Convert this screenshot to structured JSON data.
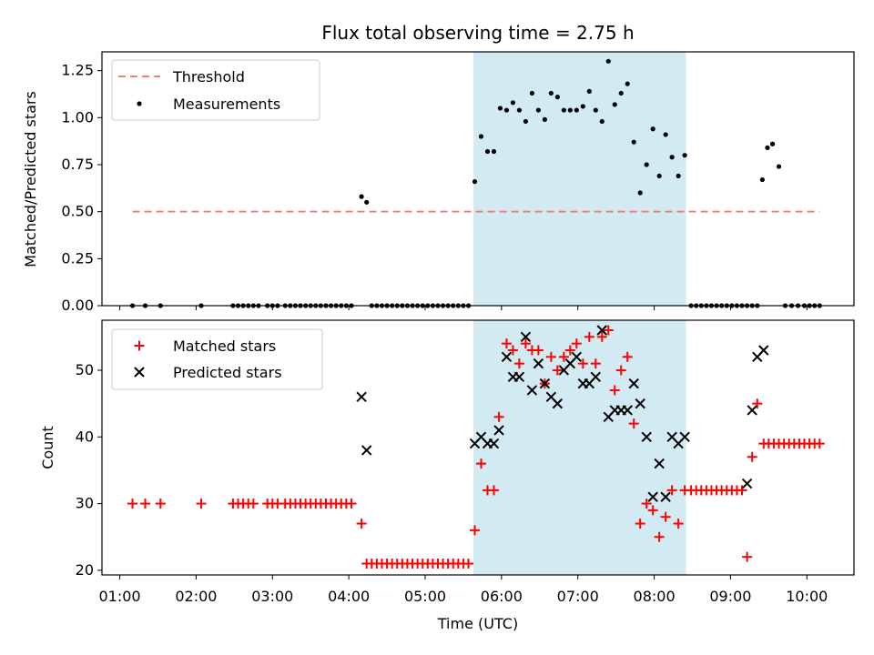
{
  "chart_data": [
    {
      "type": "scatter",
      "title": "Flux total observing time = 2.75 h",
      "xlabel": "",
      "ylabel": "Matched/Predicted stars",
      "ylim": [
        0,
        1.35
      ],
      "yticks": [
        "0.00",
        "0.25",
        "0.50",
        "0.75",
        "1.00",
        "1.25"
      ],
      "xlim": [
        "00:46",
        "10:37"
      ],
      "grid": false,
      "legend_position": "top-left",
      "highlight_span": {
        "start": "05:38",
        "end": "08:25",
        "color": "#add8e6"
      },
      "threshold": {
        "name": "Threshold",
        "value": 0.5,
        "x_start": "01:10",
        "x_end": "10:10",
        "color": "#f08080",
        "style": "dashed"
      },
      "series": [
        {
          "name": "Measurements",
          "color": "#000000",
          "marker": "dot",
          "x": [
            "01:10",
            "01:20",
            "01:32",
            "02:04",
            "02:29",
            "02:33",
            "02:37",
            "02:41",
            "02:45",
            "02:49",
            "02:56",
            "03:00",
            "03:04",
            "03:10",
            "03:14",
            "03:18",
            "03:22",
            "03:26",
            "03:30",
            "03:34",
            "03:38",
            "03:42",
            "03:46",
            "03:50",
            "03:54",
            "03:58",
            "04:02",
            "04:10",
            "04:14",
            "04:18",
            "04:22",
            "04:26",
            "04:30",
            "04:34",
            "04:38",
            "04:42",
            "04:46",
            "04:50",
            "04:54",
            "04:58",
            "05:02",
            "05:06",
            "05:10",
            "05:14",
            "05:18",
            "05:22",
            "05:26",
            "05:30",
            "05:34",
            "05:39",
            "05:44",
            "05:49",
            "05:54",
            "05:59",
            "06:04",
            "06:09",
            "06:14",
            "06:19",
            "06:24",
            "06:29",
            "06:34",
            "06:39",
            "06:44",
            "06:49",
            "06:54",
            "06:59",
            "07:04",
            "07:09",
            "07:14",
            "07:19",
            "07:24",
            "07:29",
            "07:34",
            "07:39",
            "07:44",
            "07:49",
            "07:54",
            "07:59",
            "08:04",
            "08:09",
            "08:14",
            "08:19",
            "08:24",
            "08:29",
            "08:33",
            "08:37",
            "08:41",
            "08:45",
            "08:49",
            "08:53",
            "08:57",
            "09:01",
            "09:05",
            "09:09",
            "09:13",
            "09:17",
            "09:21",
            "09:25",
            "09:29",
            "09:33",
            "09:38",
            "09:43",
            "09:48",
            "09:53",
            "09:58",
            "10:02",
            "10:06",
            "10:10"
          ],
          "y": [
            0,
            0,
            0,
            0,
            0,
            0,
            0,
            0,
            0,
            0,
            0,
            0,
            0,
            0,
            0,
            0,
            0,
            0,
            0,
            0,
            0,
            0,
            0,
            0,
            0,
            0,
            0,
            0.58,
            0.55,
            0,
            0,
            0,
            0,
            0,
            0,
            0,
            0,
            0,
            0,
            0,
            0,
            0,
            0,
            0,
            0,
            0,
            0,
            0,
            0,
            0.66,
            0.9,
            0.82,
            0.82,
            1.05,
            1.04,
            1.08,
            1.04,
            0.98,
            1.13,
            1.04,
            0.99,
            1.13,
            1.11,
            1.04,
            1.04,
            1.04,
            1.06,
            1.14,
            1.04,
            0.98,
            1.3,
            1.07,
            1.13,
            1.18,
            0.87,
            0.6,
            0.75,
            0.94,
            0.69,
            0.91,
            0.79,
            0.69,
            0.8,
            0,
            0,
            0,
            0,
            0,
            0,
            0,
            0,
            0,
            0,
            0,
            0,
            0,
            0,
            0.67,
            0.84,
            0.86,
            0.74,
            0,
            0,
            0,
            0,
            0,
            0,
            0
          ]
        }
      ]
    },
    {
      "type": "scatter",
      "title": "",
      "xlabel": "Time (UTC)",
      "ylabel": "Count",
      "ylim": [
        19.3,
        57.5
      ],
      "yticks": [
        "20",
        "30",
        "40",
        "50"
      ],
      "xticks": [
        "01:00",
        "02:00",
        "03:00",
        "04:00",
        "05:00",
        "06:00",
        "07:00",
        "08:00",
        "09:00",
        "10:00"
      ],
      "xlim": [
        "00:46",
        "10:37"
      ],
      "grid": false,
      "legend_position": "top-left",
      "highlight_span": {
        "start": "05:38",
        "end": "08:25",
        "color": "#add8e6"
      },
      "series": [
        {
          "name": "Matched stars",
          "color": "#ff0000",
          "marker": "plus",
          "points": [
            [
              "01:10",
              30
            ],
            [
              "01:20",
              30
            ],
            [
              "01:32",
              30
            ],
            [
              "02:04",
              30
            ],
            [
              "02:29",
              30
            ],
            [
              "02:33",
              30
            ],
            [
              "02:37",
              30
            ],
            [
              "02:41",
              30
            ],
            [
              "02:45",
              30
            ],
            [
              "02:56",
              30
            ],
            [
              "03:00",
              30
            ],
            [
              "03:04",
              30
            ],
            [
              "03:10",
              30
            ],
            [
              "03:14",
              30
            ],
            [
              "03:18",
              30
            ],
            [
              "03:22",
              30
            ],
            [
              "03:26",
              30
            ],
            [
              "03:30",
              30
            ],
            [
              "03:34",
              30
            ],
            [
              "03:38",
              30
            ],
            [
              "03:42",
              30
            ],
            [
              "03:46",
              30
            ],
            [
              "03:50",
              30
            ],
            [
              "03:54",
              30
            ],
            [
              "03:58",
              30
            ],
            [
              "04:02",
              30
            ],
            [
              "04:10",
              27
            ],
            [
              "04:14",
              21
            ],
            [
              "04:18",
              21
            ],
            [
              "04:22",
              21
            ],
            [
              "04:26",
              21
            ],
            [
              "04:30",
              21
            ],
            [
              "04:34",
              21
            ],
            [
              "04:38",
              21
            ],
            [
              "04:42",
              21
            ],
            [
              "04:46",
              21
            ],
            [
              "04:50",
              21
            ],
            [
              "04:54",
              21
            ],
            [
              "04:58",
              21
            ],
            [
              "05:02",
              21
            ],
            [
              "05:06",
              21
            ],
            [
              "05:10",
              21
            ],
            [
              "05:14",
              21
            ],
            [
              "05:18",
              21
            ],
            [
              "05:22",
              21
            ],
            [
              "05:26",
              21
            ],
            [
              "05:30",
              21
            ],
            [
              "05:34",
              21
            ],
            [
              "05:39",
              26
            ],
            [
              "05:44",
              36
            ],
            [
              "05:49",
              32
            ],
            [
              "05:54",
              32
            ],
            [
              "05:58",
              43
            ],
            [
              "06:04",
              54
            ],
            [
              "06:09",
              53
            ],
            [
              "06:14",
              51
            ],
            [
              "06:19",
              54
            ],
            [
              "06:24",
              53
            ],
            [
              "06:29",
              53
            ],
            [
              "06:34",
              48
            ],
            [
              "06:39",
              52
            ],
            [
              "06:44",
              50
            ],
            [
              "06:49",
              52
            ],
            [
              "06:54",
              53
            ],
            [
              "06:59",
              54
            ],
            [
              "07:04",
              51
            ],
            [
              "07:09",
              55
            ],
            [
              "07:14",
              51
            ],
            [
              "07:19",
              55
            ],
            [
              "07:24",
              56
            ],
            [
              "07:29",
              47
            ],
            [
              "07:34",
              50
            ],
            [
              "07:39",
              52
            ],
            [
              "07:44",
              42
            ],
            [
              "07:49",
              27
            ],
            [
              "07:54",
              30
            ],
            [
              "07:59",
              29
            ],
            [
              "08:04",
              25
            ],
            [
              "08:09",
              28
            ],
            [
              "08:14",
              32
            ],
            [
              "08:19",
              27
            ],
            [
              "08:24",
              32
            ],
            [
              "08:29",
              32
            ],
            [
              "08:33",
              32
            ],
            [
              "08:37",
              32
            ],
            [
              "08:41",
              32
            ],
            [
              "08:45",
              32
            ],
            [
              "08:49",
              32
            ],
            [
              "08:53",
              32
            ],
            [
              "08:57",
              32
            ],
            [
              "09:01",
              32
            ],
            [
              "09:05",
              32
            ],
            [
              "09:09",
              32
            ],
            [
              "09:13",
              22
            ],
            [
              "09:17",
              37
            ],
            [
              "09:21",
              45
            ],
            [
              "09:26",
              39
            ],
            [
              "09:30",
              39
            ],
            [
              "09:34",
              39
            ],
            [
              "09:38",
              39
            ],
            [
              "09:42",
              39
            ],
            [
              "09:46",
              39
            ],
            [
              "09:50",
              39
            ],
            [
              "09:54",
              39
            ],
            [
              "09:58",
              39
            ],
            [
              "10:02",
              39
            ],
            [
              "10:06",
              39
            ],
            [
              "10:10",
              39
            ]
          ]
        },
        {
          "name": "Predicted stars",
          "color": "#000000",
          "marker": "x",
          "points": [
            [
              "04:10",
              46
            ],
            [
              "04:14",
              38
            ],
            [
              "05:39",
              39
            ],
            [
              "05:44",
              40
            ],
            [
              "05:49",
              39
            ],
            [
              "05:54",
              39
            ],
            [
              "05:58",
              41
            ],
            [
              "06:04",
              52
            ],
            [
              "06:09",
              49
            ],
            [
              "06:14",
              49
            ],
            [
              "06:19",
              55
            ],
            [
              "06:24",
              47
            ],
            [
              "06:29",
              51
            ],
            [
              "06:34",
              48
            ],
            [
              "06:39",
              46
            ],
            [
              "06:44",
              45
            ],
            [
              "06:49",
              50
            ],
            [
              "06:54",
              51
            ],
            [
              "06:59",
              52
            ],
            [
              "07:04",
              48
            ],
            [
              "07:09",
              48
            ],
            [
              "07:14",
              49
            ],
            [
              "07:19",
              56
            ],
            [
              "07:24",
              43
            ],
            [
              "07:29",
              44
            ],
            [
              "07:34",
              44
            ],
            [
              "07:39",
              44
            ],
            [
              "07:44",
              48
            ],
            [
              "07:49",
              45
            ],
            [
              "07:54",
              40
            ],
            [
              "07:59",
              31
            ],
            [
              "08:04",
              36
            ],
            [
              "08:09",
              31
            ],
            [
              "08:14",
              40
            ],
            [
              "08:19",
              39
            ],
            [
              "08:24",
              40
            ],
            [
              "09:13",
              33
            ],
            [
              "09:17",
              44
            ],
            [
              "09:21",
              52
            ],
            [
              "09:26",
              53
            ]
          ]
        }
      ]
    }
  ]
}
